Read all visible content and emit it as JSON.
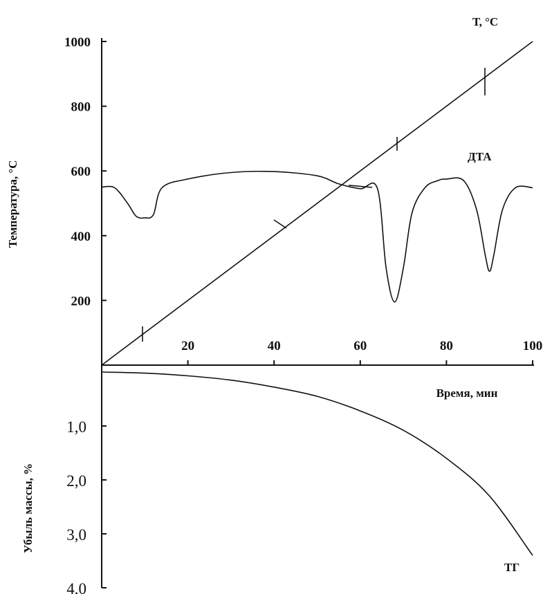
{
  "chart_data": {
    "type": "line",
    "x_axis": {
      "label": "Время, мин",
      "ticks": [
        "20",
        "40",
        "60",
        "80",
        "100"
      ],
      "range": [
        0,
        100
      ]
    },
    "y_axis_temperature": {
      "label": "Температура, °С",
      "ticks": [
        "200",
        "400",
        "600",
        "800",
        "1000"
      ],
      "range": [
        0,
        1000
      ]
    },
    "y_axis_mass_loss": {
      "label": "Убыль массы, %",
      "ticks": [
        "1,0",
        "2,0",
        "3,0",
        "4,0"
      ],
      "range": [
        0,
        4
      ],
      "direction": "downward"
    },
    "series": [
      {
        "name": "Т, °С",
        "axis": "temperature",
        "x": [
          0,
          100
        ],
        "y": [
          0,
          1000
        ]
      },
      {
        "name": "ДТА",
        "axis": "temperature",
        "note_shape": "baseline with three endothermic minima",
        "x": [
          0,
          3,
          6,
          8,
          10,
          12,
          14,
          20,
          30,
          40,
          50,
          55,
          60,
          64,
          66,
          68,
          70,
          72,
          75,
          78,
          80,
          84,
          87,
          89,
          90,
          91,
          93,
          96,
          100
        ],
        "y": [
          550,
          548,
          500,
          460,
          455,
          465,
          548,
          575,
          595,
          598,
          585,
          560,
          545,
          545,
          300,
          195,
          300,
          470,
          548,
          570,
          575,
          570,
          480,
          340,
          290,
          340,
          480,
          548,
          548
        ]
      },
      {
        "name": "ТГ",
        "axis": "mass_loss",
        "x": [
          0,
          10,
          20,
          30,
          40,
          50,
          60,
          70,
          80,
          90,
          100
        ],
        "y": [
          0.0,
          0.02,
          0.07,
          0.15,
          0.28,
          0.45,
          0.72,
          1.08,
          1.6,
          2.3,
          3.4
        ]
      }
    ],
    "annotations": [
      "Т, °С",
      "ДТА",
      "ТГ"
    ],
    "grid": false,
    "legend": "none"
  }
}
